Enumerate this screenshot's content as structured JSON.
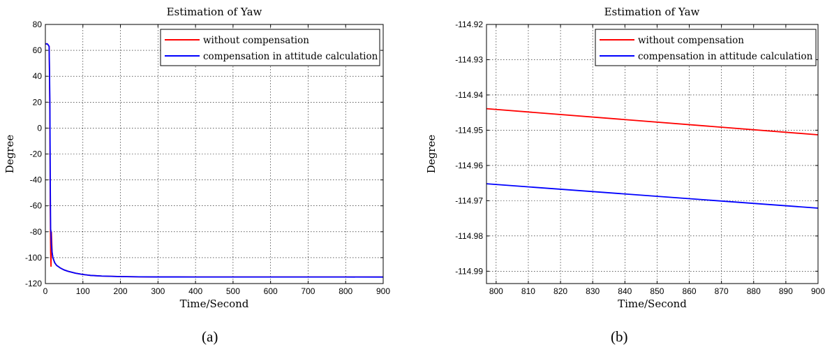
{
  "chart_data": [
    {
      "type": "line",
      "title": "Estimation of Yaw",
      "xlabel": "Time/Second",
      "ylabel": "Degree",
      "xlim": [
        0,
        900
      ],
      "ylim": [
        -120,
        80
      ],
      "xticks": [
        0,
        100,
        200,
        300,
        400,
        500,
        600,
        700,
        800,
        900
      ],
      "yticks": [
        -120,
        -100,
        -80,
        -60,
        -40,
        -20,
        0,
        20,
        40,
        60,
        80
      ],
      "grid": true,
      "legend": "top-right",
      "series": [
        {
          "name": "without compensation",
          "color": "#ff0000",
          "x": [
            0,
            5,
            8,
            10,
            11,
            12,
            13,
            14,
            15,
            16,
            18,
            20,
            25,
            30,
            40,
            50,
            60,
            80,
            100,
            120,
            150,
            200,
            250,
            300,
            400,
            500,
            600,
            700,
            800,
            900
          ],
          "y": [
            65,
            65,
            64,
            63,
            40,
            10,
            -60,
            -95,
            -107,
            -80,
            -96,
            -100,
            -104,
            -106,
            -108,
            -109.5,
            -110.5,
            -112,
            -113,
            -113.7,
            -114.2,
            -114.6,
            -114.8,
            -114.9,
            -114.93,
            -114.94,
            -114.94,
            -114.945,
            -114.945,
            -114.951
          ]
        },
        {
          "name": "compensation in attitude calculation",
          "color": "#0000ff",
          "x": [
            0,
            5,
            8,
            10,
            11,
            12,
            13,
            14,
            15,
            16,
            18,
            20,
            25,
            30,
            40,
            50,
            60,
            80,
            100,
            120,
            150,
            200,
            250,
            300,
            400,
            500,
            600,
            700,
            800,
            900
          ],
          "y": [
            65,
            65,
            64,
            63,
            45,
            20,
            -40,
            -78,
            -80,
            -90,
            -96,
            -100,
            -104,
            -106,
            -108,
            -109.5,
            -110.5,
            -112,
            -113,
            -113.7,
            -114.2,
            -114.6,
            -114.8,
            -114.9,
            -114.94,
            -114.95,
            -114.96,
            -114.965,
            -114.965,
            -114.972
          ]
        }
      ],
      "caption": "(a)"
    },
    {
      "type": "line",
      "title": "Estimation of Yaw",
      "xlabel": "Time/Second",
      "ylabel": "Degree",
      "xlim": [
        797,
        900
      ],
      "ylim": [
        -114.9935,
        -114.92
      ],
      "xticks": [
        800,
        810,
        820,
        830,
        840,
        850,
        860,
        870,
        880,
        890,
        900
      ],
      "yticks": [
        -114.99,
        -114.98,
        -114.97,
        -114.96,
        -114.95,
        -114.94,
        -114.93,
        -114.92
      ],
      "grid": true,
      "legend": "top-right",
      "series": [
        {
          "name": "without compensation",
          "color": "#ff0000",
          "x": [
            797,
            900
          ],
          "y": [
            -114.9439,
            -114.9513
          ]
        },
        {
          "name": "compensation in attitude calculation",
          "color": "#0000ff",
          "x": [
            797,
            900
          ],
          "y": [
            -114.9652,
            -114.9721
          ]
        }
      ],
      "caption": "(b)"
    }
  ]
}
